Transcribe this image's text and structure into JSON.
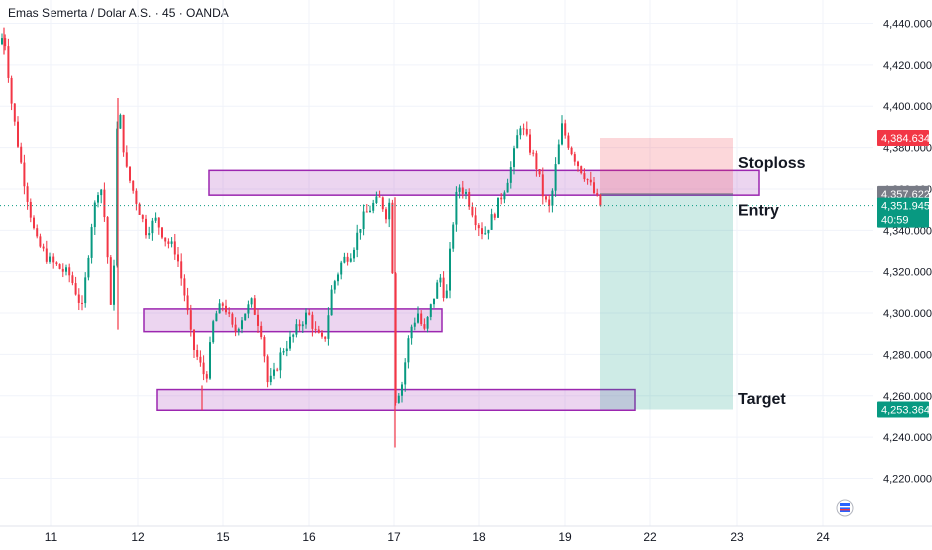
{
  "header": {
    "title": "Emas Semerta / Dolar A.S. · 45 · OANDA"
  },
  "chart_data": {
    "type": "candlestick",
    "title": "Emas Semerta / Dolar A.S. · 45 · OANDA",
    "y_ticks": [
      "4,440.000",
      "4,420.000",
      "4,400.000",
      "4,380.000",
      "4,360.000",
      "4,340.000",
      "4,320.000",
      "4,300.000",
      "4,280.000",
      "4,260.000",
      "4,240.000",
      "4,220.000"
    ],
    "y_tick_values": [
      4440,
      4420,
      4400,
      4380,
      4360,
      4340,
      4320,
      4300,
      4280,
      4260,
      4240,
      4220
    ],
    "x_ticks": [
      "11",
      "12",
      "15",
      "16",
      "17",
      "18",
      "19",
      "22",
      "23",
      "24"
    ],
    "ylim": [
      4207,
      4447
    ],
    "price_tags": [
      {
        "name": "stoploss-price",
        "label": "4,384.634",
        "value": 4384.634,
        "color": "#f23645"
      },
      {
        "name": "open-price",
        "label": "4,357.622",
        "value": 4357.622,
        "color": "#787b86"
      },
      {
        "name": "last-price",
        "label": "4,351.945",
        "sub": "40:59",
        "value": 4351.945,
        "color": "#089981"
      }
    ],
    "target_tag": {
      "label": "4,253.364",
      "value": 4253.364,
      "color": "#089981"
    },
    "annotations": [
      {
        "name": "stoploss-label",
        "text": "Stoploss",
        "value": 4373
      },
      {
        "name": "entry-label",
        "text": "Entry",
        "value": 4350
      },
      {
        "name": "target-label",
        "text": "Target",
        "value": 4259
      }
    ],
    "zones": [
      {
        "name": "resistance-zone",
        "from": 4357,
        "to": 4369
      },
      {
        "name": "middle-zone",
        "from": 4291,
        "to": 4302
      },
      {
        "name": "support-zone",
        "from": 4253,
        "to": 4263
      }
    ],
    "position": {
      "entry": 4357.622,
      "stop": 4384.634,
      "target": 4253.364
    },
    "colors": {
      "up": "#089981",
      "down": "#f23645",
      "zone": "#9c27b0",
      "profit": "#089981",
      "loss": "#f23645"
    },
    "key_points": [
      [
        0,
        4430
      ],
      [
        4,
        4436
      ],
      [
        12,
        4400
      ],
      [
        22,
        4370
      ],
      [
        36,
        4335
      ],
      [
        50,
        4325
      ],
      [
        70,
        4318
      ],
      [
        82,
        4302
      ],
      [
        92,
        4345
      ],
      [
        100,
        4365
      ],
      [
        106,
        4340
      ],
      [
        111,
        4300
      ],
      [
        114,
        4325
      ],
      [
        118,
        4404
      ],
      [
        126,
        4370
      ],
      [
        136,
        4355
      ],
      [
        146,
        4340
      ],
      [
        156,
        4345
      ],
      [
        166,
        4335
      ],
      [
        176,
        4330
      ],
      [
        186,
        4305
      ],
      [
        192,
        4285
      ],
      [
        200,
        4275
      ],
      [
        206,
        4268
      ],
      [
        214,
        4298
      ],
      [
        224,
        4305
      ],
      [
        234,
        4290
      ],
      [
        244,
        4300
      ],
      [
        252,
        4305
      ],
      [
        262,
        4290
      ],
      [
        268,
        4265
      ],
      [
        274,
        4270
      ],
      [
        282,
        4282
      ],
      [
        292,
        4288
      ],
      [
        300,
        4295
      ],
      [
        308,
        4300
      ],
      [
        316,
        4290
      ],
      [
        324,
        4285
      ],
      [
        332,
        4312
      ],
      [
        342,
        4325
      ],
      [
        352,
        4330
      ],
      [
        362,
        4345
      ],
      [
        372,
        4352
      ],
      [
        380,
        4355
      ],
      [
        386,
        4348
      ],
      [
        391,
        4356
      ],
      [
        395,
        4258
      ],
      [
        402,
        4266
      ],
      [
        410,
        4292
      ],
      [
        418,
        4300
      ],
      [
        424,
        4290
      ],
      [
        432,
        4305
      ],
      [
        440,
        4318
      ],
      [
        446,
        4305
      ],
      [
        452,
        4340
      ],
      [
        458,
        4362
      ],
      [
        466,
        4358
      ],
      [
        476,
        4345
      ],
      [
        484,
        4338
      ],
      [
        494,
        4348
      ],
      [
        504,
        4360
      ],
      [
        512,
        4372
      ],
      [
        520,
        4392
      ],
      [
        528,
        4382
      ],
      [
        536,
        4372
      ],
      [
        544,
        4355
      ],
      [
        550,
        4350
      ],
      [
        556,
        4372
      ],
      [
        562,
        4390
      ],
      [
        570,
        4380
      ],
      [
        578,
        4372
      ],
      [
        586,
        4366
      ],
      [
        594,
        4358
      ],
      [
        600,
        4352
      ]
    ]
  }
}
